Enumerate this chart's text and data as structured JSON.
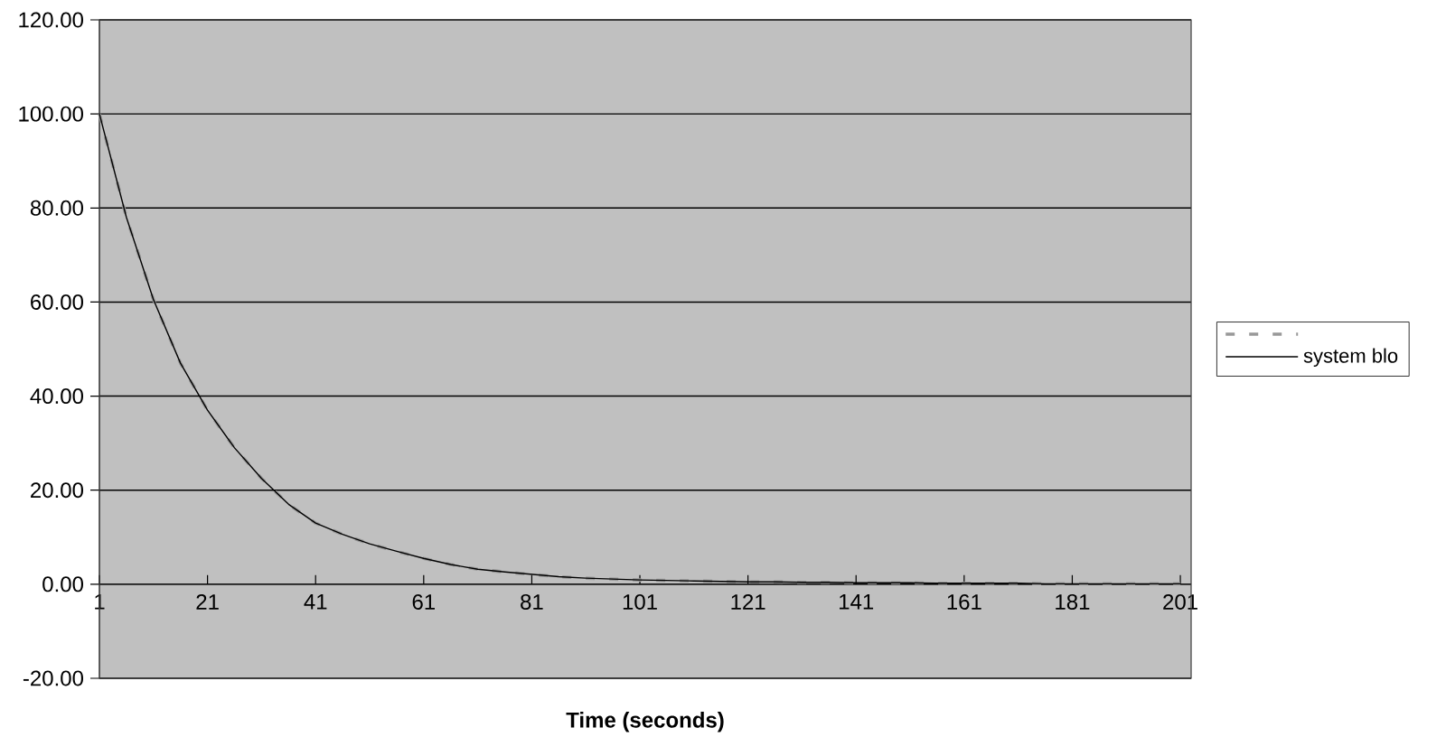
{
  "chart_data": {
    "type": "line",
    "xlabel": "Time (seconds)",
    "x": [
      1,
      6,
      11,
      16,
      21,
      26,
      31,
      36,
      41,
      46,
      51,
      56,
      61,
      66,
      71,
      76,
      81,
      86,
      91,
      96,
      101,
      106,
      111,
      116,
      121,
      126,
      131,
      136,
      141,
      146,
      151,
      156,
      161,
      166,
      171,
      176,
      181,
      186,
      191,
      196,
      201
    ],
    "xlim": [
      1,
      203
    ],
    "xticks": [
      1,
      21,
      41,
      61,
      81,
      101,
      121,
      141,
      161,
      181,
      201
    ],
    "ylim": [
      -20,
      120
    ],
    "yticks": [
      {
        "value": -20,
        "label": "-20.00"
      },
      {
        "value": 0,
        "label": "0.00"
      },
      {
        "value": 20,
        "label": "20.00"
      },
      {
        "value": 40,
        "label": "40.00"
      },
      {
        "value": 60,
        "label": "60.00"
      },
      {
        "value": 80,
        "label": "80.00"
      },
      {
        "value": 100,
        "label": "100.00"
      },
      {
        "value": 120,
        "label": "120.00"
      }
    ],
    "grid": "y",
    "legend": "right",
    "series": [
      {
        "color": "#999999",
        "line_style": "dashed",
        "values": [
          100,
          78,
          60.5,
          47,
          37,
          29,
          22.5,
          17,
          13,
          10.6,
          8.6,
          7,
          5.5,
          4.2,
          3.2,
          2.6,
          2.1,
          1.6,
          1.3,
          1.1,
          0.9,
          0.8,
          0.7,
          0.6,
          0.5,
          0.5,
          0.4,
          0.4,
          0.3,
          0.3,
          0.3,
          0.2,
          0.2,
          0.2,
          0.2,
          0.1,
          0.1,
          0.1,
          0.1,
          0.1,
          0.1
        ]
      },
      {
        "name": "system blo",
        "color": "#000000",
        "line_style": "solid",
        "values": [
          100,
          78,
          60.5,
          47,
          37,
          29,
          22.5,
          17,
          13,
          10.6,
          8.6,
          7,
          5.5,
          4.2,
          3.2,
          2.6,
          2.1,
          1.6,
          1.3,
          1.1,
          0.9,
          0.8,
          0.7,
          0.6,
          0.5,
          0.5,
          0.4,
          0.4,
          0.3,
          0.3,
          0.3,
          0.2,
          0.2,
          0.2,
          0.2,
          0.1,
          0.1,
          0.1,
          0.1,
          0.1,
          0.1
        ]
      }
    ]
  }
}
